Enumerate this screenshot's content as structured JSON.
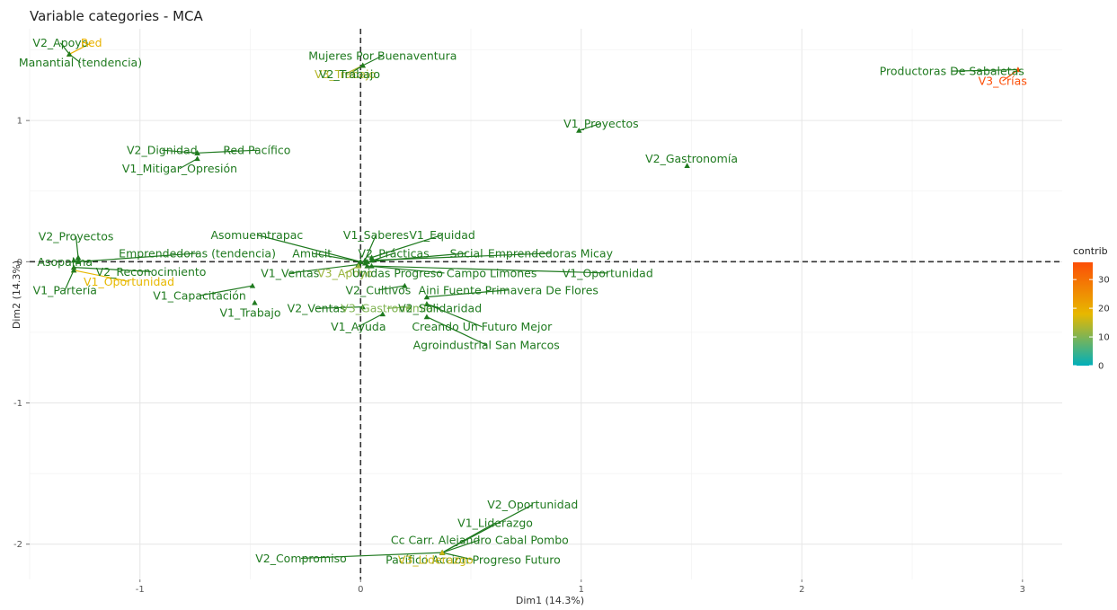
{
  "chart_data": {
    "type": "scatter",
    "title": "Variable categories - MCA",
    "xlabel": "Dim1 (14.3%)",
    "ylabel": "Dim2 (14.3%)",
    "xlim": [
      -1.5,
      3.18
    ],
    "ylim": [
      -2.25,
      1.65
    ],
    "x_ticks": [
      -1,
      0,
      1,
      2,
      3
    ],
    "y_ticks": [
      -2,
      -1,
      0,
      1
    ],
    "grid": true,
    "reference_lines": {
      "x": 0,
      "y": 0,
      "style": "dashed"
    },
    "legend": {
      "title": "contrib",
      "position": "right",
      "ticks": [
        0,
        10,
        20,
        30
      ],
      "range": [
        0,
        36
      ],
      "colors": [
        "#00AFBB",
        "#E7B800",
        "#FC4E07"
      ]
    },
    "points": [
      {
        "label": "V2_Apoyo",
        "x": -1.32,
        "y": 1.47,
        "contrib": 5,
        "lx": -1.36,
        "ly": 1.55
      },
      {
        "label": "Red",
        "x": -1.32,
        "y": 1.47,
        "contrib": 19,
        "lx": -1.22,
        "ly": 1.55
      },
      {
        "label": "Manantial (tendencia)",
        "x": -1.32,
        "y": 1.47,
        "contrib": 5,
        "lx": -1.27,
        "ly": 1.41
      },
      {
        "label": "Mujeres Por Buenaventura",
        "x": 0.01,
        "y": 1.39,
        "contrib": 5,
        "lx": 0.1,
        "ly": 1.46
      },
      {
        "label": "V3_Trabajo",
        "x": 0.01,
        "y": 1.39,
        "contrib": 14,
        "lx": -0.07,
        "ly": 1.33
      },
      {
        "label": "V2_Trabajo",
        "x": 0.01,
        "y": 1.39,
        "contrib": 5,
        "lx": -0.05,
        "ly": 1.33
      },
      {
        "label": "Productoras De Sabaletas",
        "x": 2.98,
        "y": 1.36,
        "contrib": 5,
        "lx": 2.68,
        "ly": 1.35
      },
      {
        "label": "V3_Crías",
        "x": 2.98,
        "y": 1.36,
        "contrib": 36,
        "lx": 2.91,
        "ly": 1.28
      },
      {
        "label": "V1_Proyectos",
        "x": 0.99,
        "y": 0.93,
        "contrib": 5,
        "lx": 1.09,
        "ly": 0.98
      },
      {
        "label": "V2_Dignidad",
        "x": -0.74,
        "y": 0.77,
        "contrib": 5,
        "lx": -0.9,
        "ly": 0.79
      },
      {
        "label": "Red Pacífico",
        "x": -0.74,
        "y": 0.77,
        "contrib": 5,
        "lx": -0.47,
        "ly": 0.79
      },
      {
        "label": "V1_Mitigar_Opresión",
        "x": -0.74,
        "y": 0.73,
        "contrib": 5,
        "lx": -0.82,
        "ly": 0.66
      },
      {
        "label": "V2_Gastronomía",
        "x": 1.48,
        "y": 0.68,
        "contrib": 5,
        "lx": 1.5,
        "ly": 0.73
      },
      {
        "label": "V2_Proyectos",
        "x": -1.28,
        "y": 0.03,
        "contrib": 5,
        "lx": -1.29,
        "ly": 0.18
      },
      {
        "label": "Asopalma",
        "x": -1.3,
        "y": 0.01,
        "contrib": 5,
        "lx": -1.34,
        "ly": 0.0
      },
      {
        "label": "Emprendedoras (tendencia)",
        "x": -1.28,
        "y": 0.0,
        "contrib": 5,
        "lx": -0.74,
        "ly": 0.06
      },
      {
        "label": "V2_Reconocimiento",
        "x": -1.3,
        "y": -0.04,
        "contrib": 5,
        "lx": -0.95,
        "ly": -0.07
      },
      {
        "label": "V1_Oportunidad",
        "x": -1.3,
        "y": -0.06,
        "contrib": 18,
        "lx": -1.05,
        "ly": -0.14
      },
      {
        "label": "V1_Partería",
        "x": -1.3,
        "y": -0.06,
        "contrib": 5,
        "lx": -1.34,
        "ly": -0.2
      },
      {
        "label": "V1_Capacitación",
        "x": -0.49,
        "y": -0.17,
        "contrib": 5,
        "lx": -0.73,
        "ly": -0.24
      },
      {
        "label": "V1_Trabajo",
        "x": -0.48,
        "y": -0.29,
        "contrib": 5,
        "lx": -0.5,
        "ly": -0.36
      },
      {
        "label": "Asomuemtrapac",
        "x": 0.0,
        "y": 0.0,
        "contrib": 5,
        "lx": -0.47,
        "ly": 0.19
      },
      {
        "label": "V1_Saberes",
        "x": 0.02,
        "y": 0.01,
        "contrib": 5,
        "lx": 0.07,
        "ly": 0.19
      },
      {
        "label": "V1_Equidad",
        "x": 0.05,
        "y": 0.03,
        "contrib": 5,
        "lx": 0.37,
        "ly": 0.19
      },
      {
        "label": "Amucit",
        "x": 0.0,
        "y": 0.0,
        "contrib": 5,
        "lx": -0.22,
        "ly": 0.06
      },
      {
        "label": "V2_Prácticas",
        "x": 0.02,
        "y": -0.01,
        "contrib": 5,
        "lx": 0.15,
        "ly": 0.06
      },
      {
        "label": "Social",
        "x": 0.03,
        "y": 0.0,
        "contrib": 5,
        "lx": 0.48,
        "ly": 0.06
      },
      {
        "label": "Emprendedoras Micay",
        "x": 0.05,
        "y": 0.01,
        "contrib": 5,
        "lx": 0.86,
        "ly": 0.06
      },
      {
        "label": "V1_Ventas",
        "x": -0.01,
        "y": -0.02,
        "contrib": 5,
        "lx": -0.32,
        "ly": -0.08
      },
      {
        "label": "V3_Apoyo",
        "x": -0.01,
        "y": -0.03,
        "contrib": 12,
        "lx": -0.07,
        "ly": -0.08
      },
      {
        "label": "Unidas Progreso Campo Limones",
        "x": 0.03,
        "y": -0.03,
        "contrib": 5,
        "lx": 0.38,
        "ly": -0.08
      },
      {
        "label": "V1_Oportunidad",
        "x": 0.05,
        "y": -0.03,
        "contrib": 5,
        "lx": 1.12,
        "ly": -0.08
      },
      {
        "label": "V2_Cultivos",
        "x": 0.2,
        "y": -0.17,
        "contrib": 5,
        "lx": 0.08,
        "ly": -0.2
      },
      {
        "label": "Aini Fuente Primavera De Flores",
        "x": 0.3,
        "y": -0.25,
        "contrib": 5,
        "lx": 0.67,
        "ly": -0.2
      },
      {
        "label": "V2_Ventas",
        "x": 0.01,
        "y": -0.32,
        "contrib": 5,
        "lx": -0.2,
        "ly": -0.33
      },
      {
        "label": "V3_Gastronomía",
        "x": 0.22,
        "y": -0.32,
        "contrib": 10,
        "lx": 0.12,
        "ly": -0.33
      },
      {
        "label": "V2_Solidaridad",
        "x": 0.3,
        "y": -0.3,
        "contrib": 5,
        "lx": 0.36,
        "ly": -0.33
      },
      {
        "label": "V1_Ayuda",
        "x": 0.1,
        "y": -0.37,
        "contrib": 5,
        "lx": -0.01,
        "ly": -0.46
      },
      {
        "label": "Creando Un Futuro Mejor",
        "x": 0.3,
        "y": -0.3,
        "contrib": 5,
        "lx": 0.55,
        "ly": -0.46
      },
      {
        "label": "Agroindustrial  San Marcos",
        "x": 0.3,
        "y": -0.39,
        "contrib": 5,
        "lx": 0.57,
        "ly": -0.59
      },
      {
        "label": "V2_Oportunidad",
        "x": 0.37,
        "y": -2.06,
        "contrib": 5,
        "lx": 0.78,
        "ly": -1.72
      },
      {
        "label": "V1_Liderazgo",
        "x": 0.37,
        "y": -2.06,
        "contrib": 5,
        "lx": 0.61,
        "ly": -1.85
      },
      {
        "label": "Cc Carr.  Alejandro Cabal Pombo",
        "x": 0.37,
        "y": -2.06,
        "contrib": 5,
        "lx": 0.54,
        "ly": -1.97
      },
      {
        "label": "V2_Compromiso",
        "x": 0.37,
        "y": -2.06,
        "contrib": 5,
        "lx": -0.27,
        "ly": -2.1
      },
      {
        "label": "Pacífico Accion  Progreso Futuro",
        "x": 0.37,
        "y": -2.06,
        "contrib": 5,
        "lx": 0.51,
        "ly": -2.11
      },
      {
        "label": "V3_Liderazgo",
        "x": 0.37,
        "y": -2.06,
        "contrib": 16,
        "lx": 0.34,
        "ly": -2.11
      }
    ]
  }
}
